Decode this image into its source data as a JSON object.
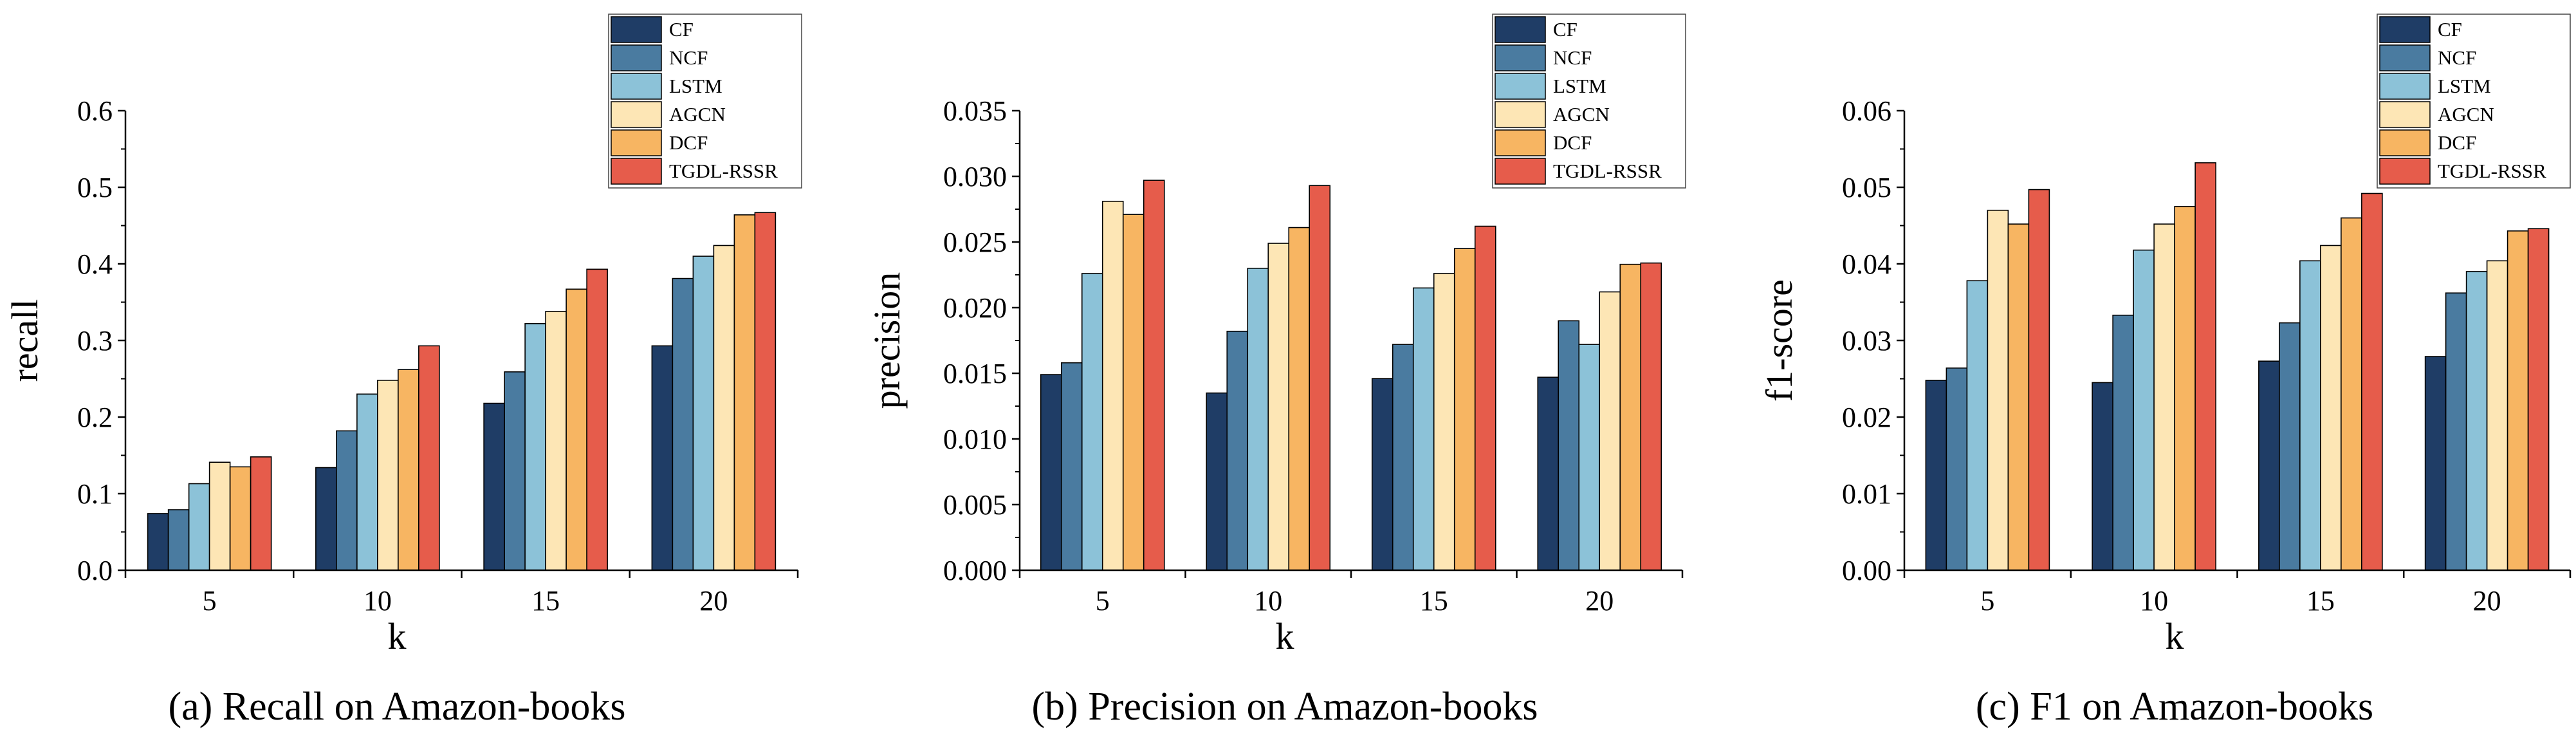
{
  "series_colors": {
    "CF": "#1f3d66",
    "NCF": "#4a7ba0",
    "LSTM": "#8cc2d8",
    "AGCN": "#fde6b5",
    "DCF": "#f7b562",
    "TGDL-RSSR": "#e65c4b"
  },
  "chart_data": [
    {
      "type": "bar",
      "title": "",
      "caption": "(a)  Recall on Amazon-books",
      "xlabel": "k",
      "ylabel": "recall",
      "categories": [
        "5",
        "10",
        "15",
        "20"
      ],
      "ylim": [
        0,
        0.6
      ],
      "yticks": [
        "0.0",
        "0.1",
        "0.2",
        "0.3",
        "0.4",
        "0.5",
        "0.6"
      ],
      "legend": "top-right",
      "series": [
        {
          "name": "CF",
          "values": [
            0.074,
            0.134,
            0.218,
            0.293
          ]
        },
        {
          "name": "NCF",
          "values": [
            0.079,
            0.182,
            0.259,
            0.381
          ]
        },
        {
          "name": "LSTM",
          "values": [
            0.113,
            0.23,
            0.322,
            0.41
          ]
        },
        {
          "name": "AGCN",
          "values": [
            0.141,
            0.248,
            0.338,
            0.424
          ]
        },
        {
          "name": "DCF",
          "values": [
            0.135,
            0.262,
            0.367,
            0.464
          ]
        },
        {
          "name": "TGDL-RSSR",
          "values": [
            0.148,
            0.293,
            0.393,
            0.467
          ]
        }
      ]
    },
    {
      "type": "bar",
      "title": "",
      "caption": "(b)  Precision on Amazon-books",
      "xlabel": "k",
      "ylabel": "precision",
      "categories": [
        "5",
        "10",
        "15",
        "20"
      ],
      "ylim": [
        0,
        0.035
      ],
      "yticks": [
        "0.000",
        "0.005",
        "0.010",
        "0.015",
        "0.020",
        "0.025",
        "0.030",
        "0.035"
      ],
      "legend": "top-right",
      "series": [
        {
          "name": "CF",
          "values": [
            0.0149,
            0.0135,
            0.0146,
            0.0147
          ]
        },
        {
          "name": "NCF",
          "values": [
            0.0158,
            0.0182,
            0.0172,
            0.019
          ]
        },
        {
          "name": "LSTM",
          "values": [
            0.0226,
            0.023,
            0.0215,
            0.0172
          ]
        },
        {
          "name": "AGCN",
          "values": [
            0.0281,
            0.0249,
            0.0226,
            0.0212
          ]
        },
        {
          "name": "DCF",
          "values": [
            0.0271,
            0.0261,
            0.0245,
            0.0233
          ]
        },
        {
          "name": "TGDL-RSSR",
          "values": [
            0.0297,
            0.0293,
            0.0262,
            0.0234
          ]
        }
      ]
    },
    {
      "type": "bar",
      "title": "",
      "caption": "(c)  F1 on Amazon-books",
      "xlabel": "k",
      "ylabel": "f1-score",
      "categories": [
        "5",
        "10",
        "15",
        "20"
      ],
      "ylim": [
        0,
        0.06
      ],
      "yticks": [
        "0.00",
        "0.01",
        "0.02",
        "0.03",
        "0.04",
        "0.05",
        "0.06"
      ],
      "legend": "top-right",
      "series": [
        {
          "name": "CF",
          "values": [
            0.0248,
            0.0245,
            0.0273,
            0.0279
          ]
        },
        {
          "name": "NCF",
          "values": [
            0.0264,
            0.0333,
            0.0323,
            0.0362
          ]
        },
        {
          "name": "LSTM",
          "values": [
            0.0378,
            0.0418,
            0.0404,
            0.039
          ]
        },
        {
          "name": "AGCN",
          "values": [
            0.047,
            0.0452,
            0.0424,
            0.0404
          ]
        },
        {
          "name": "DCF",
          "values": [
            0.0452,
            0.0475,
            0.046,
            0.0443
          ]
        },
        {
          "name": "TGDL-RSSR",
          "values": [
            0.0497,
            0.0532,
            0.0492,
            0.0446
          ]
        }
      ]
    }
  ]
}
